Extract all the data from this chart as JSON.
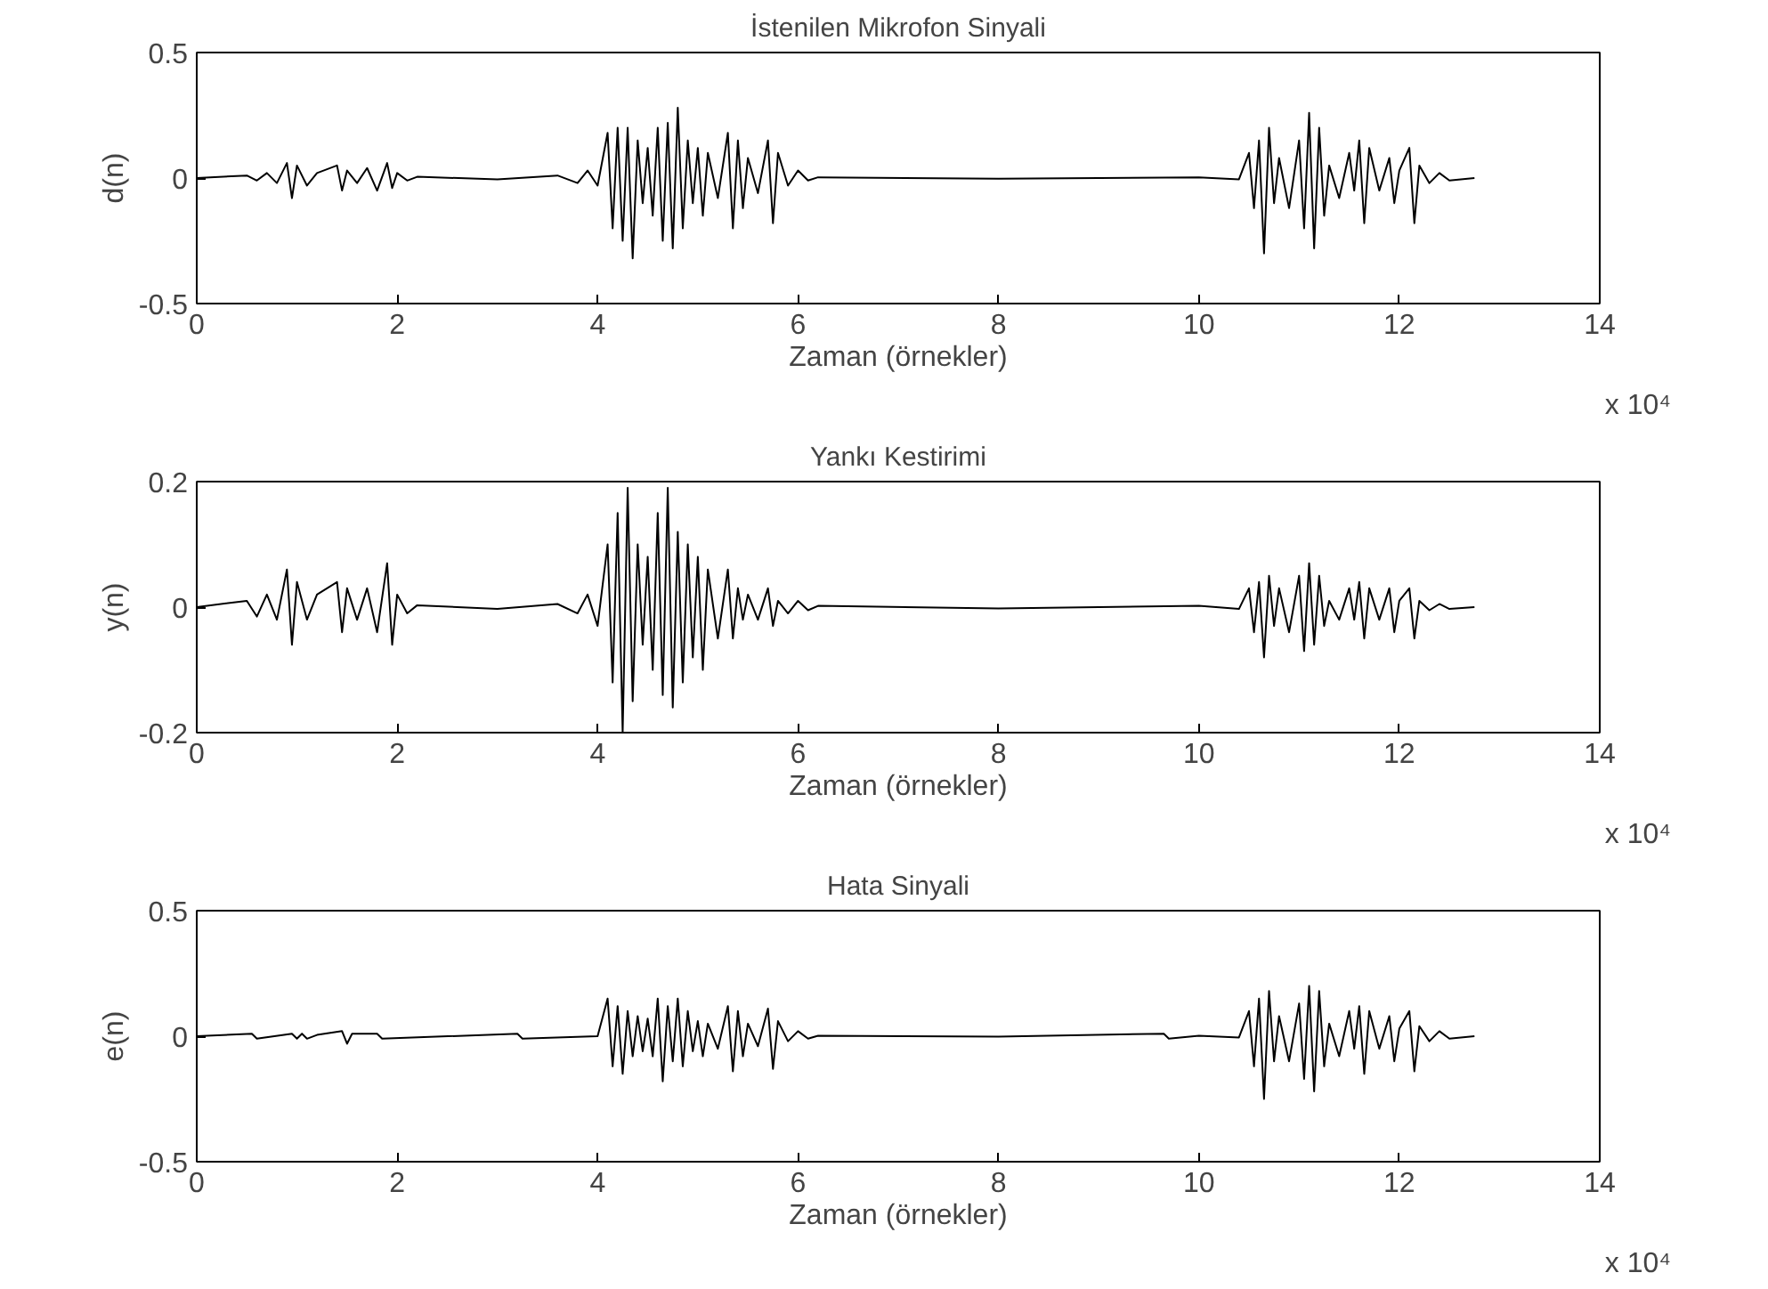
{
  "chart_data": [
    {
      "type": "line",
      "title": "İstenilen Mikrofon Sinyali",
      "xlabel": "Zaman (örnekler)",
      "ylabel": "d(n)",
      "color": "#000000",
      "grid": false,
      "annotations": [
        "x 10⁴"
      ],
      "xlim": [
        0,
        14
      ],
      "ylim": [
        -0.5,
        0.5
      ],
      "yticks": [
        -0.5,
        0,
        0.5
      ],
      "xticks": [
        0,
        2,
        4,
        6,
        8,
        10,
        12,
        14
      ],
      "x": [
        0,
        0.5,
        0.6,
        0.7,
        0.8,
        0.9,
        0.95,
        1.0,
        1.1,
        1.2,
        1.4,
        1.45,
        1.5,
        1.6,
        1.7,
        1.8,
        1.9,
        1.95,
        2.0,
        2.1,
        2.2,
        3.0,
        3.6,
        3.8,
        3.9,
        4.0,
        4.1,
        4.15,
        4.2,
        4.25,
        4.3,
        4.35,
        4.4,
        4.45,
        4.5,
        4.55,
        4.6,
        4.65,
        4.7,
        4.75,
        4.8,
        4.85,
        4.9,
        4.95,
        5.0,
        5.05,
        5.1,
        5.2,
        5.3,
        5.35,
        5.4,
        5.45,
        5.5,
        5.6,
        5.7,
        5.75,
        5.8,
        5.9,
        6.0,
        6.1,
        6.2,
        8.0,
        10.0,
        10.4,
        10.5,
        10.55,
        10.6,
        10.65,
        10.7,
        10.75,
        10.8,
        10.9,
        11.0,
        11.05,
        11.1,
        11.15,
        11.2,
        11.25,
        11.3,
        11.4,
        11.5,
        11.55,
        11.6,
        11.65,
        11.7,
        11.8,
        11.9,
        11.95,
        12.0,
        12.1,
        12.15,
        12.2,
        12.3,
        12.4,
        12.5,
        12.75
      ],
      "values": [
        0,
        0.01,
        -0.01,
        0.02,
        -0.02,
        0.06,
        -0.08,
        0.05,
        -0.03,
        0.02,
        0.05,
        -0.05,
        0.03,
        -0.02,
        0.04,
        -0.05,
        0.06,
        -0.04,
        0.02,
        -0.01,
        0.005,
        -0.005,
        0.01,
        -0.02,
        0.03,
        -0.03,
        0.18,
        -0.2,
        0.2,
        -0.25,
        0.2,
        -0.32,
        0.15,
        -0.1,
        0.12,
        -0.15,
        0.2,
        -0.25,
        0.22,
        -0.28,
        0.28,
        -0.2,
        0.15,
        -0.1,
        0.12,
        -0.15,
        0.1,
        -0.08,
        0.18,
        -0.2,
        0.15,
        -0.12,
        0.08,
        -0.06,
        0.15,
        -0.18,
        0.1,
        -0.03,
        0.03,
        -0.01,
        0.003,
        -0.003,
        0.003,
        -0.005,
        0.1,
        -0.12,
        0.15,
        -0.3,
        0.2,
        -0.1,
        0.08,
        -0.12,
        0.15,
        -0.2,
        0.26,
        -0.28,
        0.2,
        -0.15,
        0.05,
        -0.08,
        0.1,
        -0.05,
        0.15,
        -0.18,
        0.12,
        -0.05,
        0.08,
        -0.1,
        0.03,
        0.12,
        -0.18,
        0.05,
        -0.02,
        0.02,
        -0.01,
        0
      ]
    },
    {
      "type": "line",
      "title": "Yankı Kestirimi",
      "xlabel": "Zaman (örnekler)",
      "ylabel": "y(n)",
      "color": "#000000",
      "grid": false,
      "annotations": [
        "x 10⁴"
      ],
      "xlim": [
        0,
        14
      ],
      "ylim": [
        -0.2,
        0.2
      ],
      "yticks": [
        -0.2,
        0,
        0.2
      ],
      "xticks": [
        0,
        2,
        4,
        6,
        8,
        10,
        12,
        14
      ],
      "x": [
        0,
        0.5,
        0.6,
        0.7,
        0.8,
        0.9,
        0.95,
        1.0,
        1.1,
        1.2,
        1.4,
        1.45,
        1.5,
        1.6,
        1.7,
        1.8,
        1.9,
        1.95,
        2.0,
        2.1,
        2.2,
        3.0,
        3.6,
        3.8,
        3.9,
        4.0,
        4.1,
        4.15,
        4.2,
        4.25,
        4.3,
        4.35,
        4.4,
        4.45,
        4.5,
        4.55,
        4.6,
        4.65,
        4.7,
        4.75,
        4.8,
        4.85,
        4.9,
        4.95,
        5.0,
        5.05,
        5.1,
        5.2,
        5.3,
        5.35,
        5.4,
        5.45,
        5.5,
        5.6,
        5.7,
        5.75,
        5.8,
        5.9,
        6.0,
        6.1,
        6.2,
        8.0,
        10.0,
        10.4,
        10.5,
        10.55,
        10.6,
        10.65,
        10.7,
        10.75,
        10.8,
        10.9,
        11.0,
        11.05,
        11.1,
        11.15,
        11.2,
        11.25,
        11.3,
        11.4,
        11.5,
        11.55,
        11.6,
        11.65,
        11.7,
        11.8,
        11.9,
        11.95,
        12.0,
        12.1,
        12.15,
        12.2,
        12.3,
        12.4,
        12.5,
        12.75
      ],
      "values": [
        0,
        0.01,
        -0.015,
        0.02,
        -0.02,
        0.06,
        -0.06,
        0.04,
        -0.02,
        0.02,
        0.04,
        -0.04,
        0.03,
        -0.02,
        0.03,
        -0.04,
        0.07,
        -0.06,
        0.02,
        -0.01,
        0.003,
        -0.003,
        0.005,
        -0.01,
        0.02,
        -0.03,
        0.1,
        -0.12,
        0.15,
        -0.2,
        0.19,
        -0.15,
        0.1,
        -0.06,
        0.08,
        -0.1,
        0.15,
        -0.14,
        0.19,
        -0.16,
        0.12,
        -0.12,
        0.1,
        -0.08,
        0.08,
        -0.1,
        0.06,
        -0.05,
        0.06,
        -0.05,
        0.03,
        -0.02,
        0.02,
        -0.02,
        0.03,
        -0.03,
        0.01,
        -0.01,
        0.01,
        -0.005,
        0.002,
        -0.002,
        0.002,
        -0.003,
        0.03,
        -0.04,
        0.04,
        -0.08,
        0.05,
        -0.03,
        0.03,
        -0.04,
        0.05,
        -0.07,
        0.07,
        -0.06,
        0.05,
        -0.03,
        0.01,
        -0.02,
        0.03,
        -0.02,
        0.04,
        -0.05,
        0.03,
        -0.02,
        0.03,
        -0.04,
        0.01,
        0.03,
        -0.05,
        0.01,
        -0.005,
        0.005,
        -0.003,
        0
      ]
    },
    {
      "type": "line",
      "title": "Hata Sinyali",
      "xlabel": "Zaman (örnekler)",
      "ylabel": "e(n)",
      "color": "#000000",
      "grid": false,
      "annotations": [
        "x 10⁴"
      ],
      "xlim": [
        0,
        14
      ],
      "ylim": [
        -0.5,
        0.5
      ],
      "yticks": [
        -0.5,
        0,
        0.5
      ],
      "xticks": [
        0,
        2,
        4,
        6,
        8,
        10,
        12,
        14
      ],
      "x": [
        0,
        0.55,
        0.6,
        0.95,
        1.0,
        1.05,
        1.1,
        1.2,
        1.45,
        1.5,
        1.55,
        1.8,
        1.85,
        3.2,
        3.25,
        4.0,
        4.1,
        4.15,
        4.2,
        4.25,
        4.3,
        4.35,
        4.4,
        4.45,
        4.5,
        4.55,
        4.6,
        4.65,
        4.7,
        4.75,
        4.8,
        4.85,
        4.9,
        4.95,
        5.0,
        5.05,
        5.1,
        5.2,
        5.3,
        5.35,
        5.4,
        5.45,
        5.5,
        5.6,
        5.7,
        5.75,
        5.8,
        5.9,
        6.0,
        6.1,
        6.2,
        8.0,
        9.65,
        9.7,
        10.0,
        10.4,
        10.5,
        10.55,
        10.6,
        10.65,
        10.7,
        10.75,
        10.8,
        10.9,
        11.0,
        11.05,
        11.1,
        11.15,
        11.2,
        11.25,
        11.3,
        11.4,
        11.5,
        11.55,
        11.6,
        11.65,
        11.7,
        11.8,
        11.9,
        11.95,
        12.0,
        12.1,
        12.15,
        12.2,
        12.3,
        12.4,
        12.5,
        12.75
      ],
      "values": [
        0,
        0.01,
        -0.01,
        0.01,
        -0.01,
        0.01,
        -0.01,
        0.005,
        0.02,
        -0.03,
        0.01,
        0.01,
        -0.01,
        0.01,
        -0.01,
        0,
        0.15,
        -0.12,
        0.12,
        -0.15,
        0.1,
        -0.08,
        0.08,
        -0.06,
        0.07,
        -0.08,
        0.15,
        -0.18,
        0.12,
        -0.1,
        0.15,
        -0.12,
        0.1,
        -0.06,
        0.06,
        -0.08,
        0.05,
        -0.05,
        0.12,
        -0.14,
        0.1,
        -0.08,
        0.05,
        -0.04,
        0.11,
        -0.13,
        0.06,
        -0.02,
        0.02,
        -0.01,
        0.002,
        -0.002,
        0.01,
        -0.01,
        0.002,
        -0.005,
        0.1,
        -0.12,
        0.15,
        -0.25,
        0.18,
        -0.1,
        0.08,
        -0.1,
        0.13,
        -0.17,
        0.2,
        -0.22,
        0.18,
        -0.12,
        0.05,
        -0.08,
        0.1,
        -0.05,
        0.12,
        -0.15,
        0.1,
        -0.05,
        0.08,
        -0.1,
        0.03,
        0.1,
        -0.14,
        0.04,
        -0.02,
        0.02,
        -0.01,
        0
      ]
    }
  ]
}
